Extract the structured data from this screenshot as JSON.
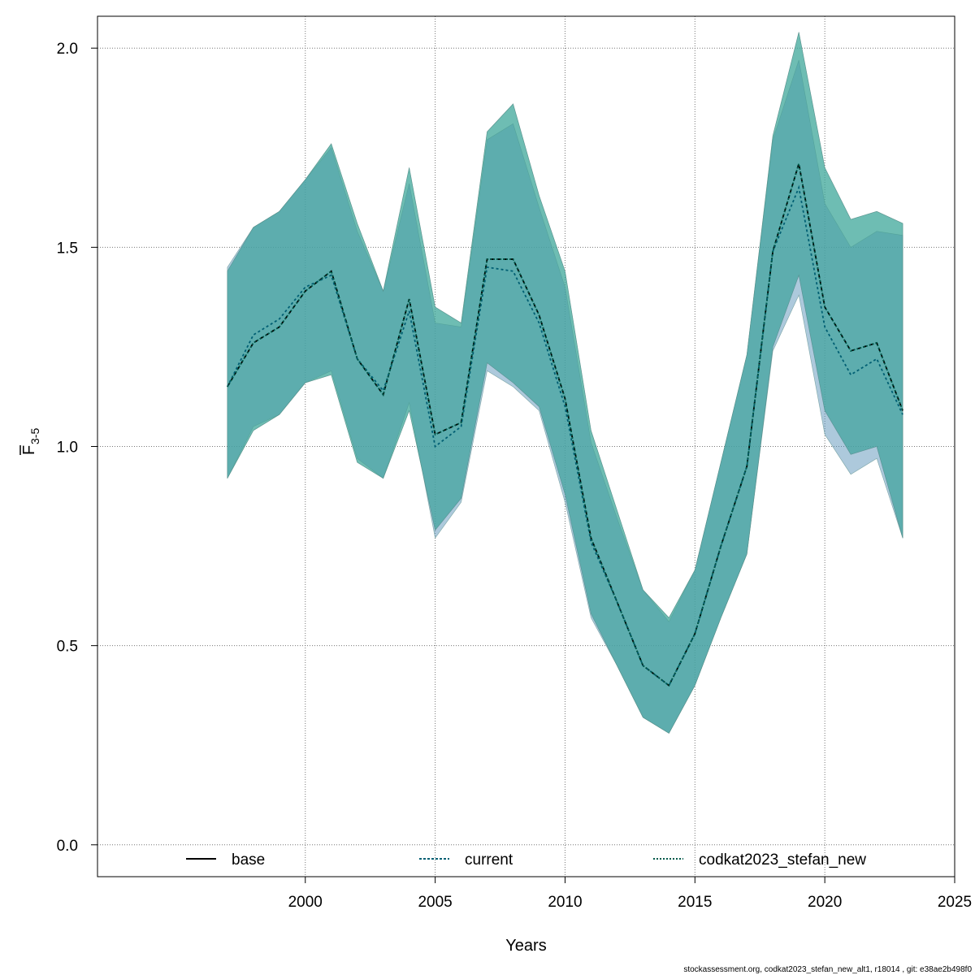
{
  "chart_data": {
    "type": "line",
    "xlabel": "Years",
    "ylabel_main": "F",
    "ylabel_sub": "3-5",
    "xlim": [
      1992,
      2025
    ],
    "ylim": [
      -0.08,
      2.08
    ],
    "grid": true,
    "legend_position": "bottom",
    "x_ticks": [
      2000,
      2005,
      2010,
      2015,
      2020,
      2025
    ],
    "y_ticks": [
      0.0,
      0.5,
      1.0,
      1.5,
      2.0
    ],
    "x_tick_labels": [
      "2000",
      "2005",
      "2010",
      "2015",
      "2020",
      "2025"
    ],
    "y_tick_labels": [
      "0.0",
      "0.5",
      "1.0",
      "1.5",
      "2.0"
    ],
    "years": [
      1997,
      1998,
      1999,
      2000,
      2001,
      2002,
      2003,
      2004,
      2005,
      2006,
      2007,
      2008,
      2009,
      2010,
      2011,
      2012,
      2013,
      2014,
      2015,
      2016,
      2017,
      2018,
      2019,
      2020,
      2021,
      2022,
      2023
    ],
    "series": [
      {
        "name": "base",
        "color": "#000000",
        "dash": "5,3",
        "values": [
          1.15,
          1.26,
          1.3,
          1.39,
          1.44,
          1.22,
          1.13,
          1.37,
          1.03,
          1.06,
          1.47,
          1.47,
          1.33,
          1.12,
          0.77,
          0.61,
          0.45,
          0.4,
          0.53,
          0.75,
          0.95,
          1.49,
          1.71,
          1.35,
          1.24,
          1.26,
          1.09
        ],
        "upper": [
          1.44,
          1.55,
          1.59,
          1.67,
          1.76,
          1.56,
          1.39,
          1.7,
          1.35,
          1.31,
          1.79,
          1.86,
          1.63,
          1.44,
          1.04,
          0.84,
          0.64,
          0.57,
          0.69,
          0.96,
          1.23,
          1.78,
          2.04,
          1.7,
          1.57,
          1.59,
          1.56
        ],
        "lower": [
          0.92,
          1.04,
          1.08,
          1.16,
          1.18,
          0.96,
          0.92,
          1.09,
          0.79,
          0.87,
          1.21,
          1.16,
          1.1,
          0.88,
          0.58,
          0.45,
          0.32,
          0.28,
          0.4,
          0.57,
          0.73,
          1.25,
          1.43,
          1.09,
          0.98,
          1.0,
          0.77
        ],
        "band_color": "#3da89a",
        "band_opacity": 0.5
      },
      {
        "name": "current",
        "color": "#005f73",
        "dash": "3,3",
        "values": [
          1.15,
          1.28,
          1.32,
          1.4,
          1.43,
          1.22,
          1.14,
          1.34,
          1.0,
          1.05,
          1.45,
          1.44,
          1.31,
          1.1,
          0.76,
          0.61,
          0.45,
          0.4,
          0.53,
          0.75,
          0.95,
          1.49,
          1.65,
          1.3,
          1.18,
          1.22,
          1.08
        ],
        "upper": [
          1.45,
          1.55,
          1.59,
          1.67,
          1.75,
          1.54,
          1.39,
          1.66,
          1.31,
          1.3,
          1.77,
          1.81,
          1.6,
          1.4,
          1.01,
          0.82,
          0.64,
          0.56,
          0.69,
          0.96,
          1.23,
          1.77,
          1.97,
          1.61,
          1.5,
          1.54,
          1.53
        ],
        "lower": [
          0.92,
          1.05,
          1.08,
          1.16,
          1.19,
          0.97,
          0.92,
          1.11,
          0.77,
          0.86,
          1.19,
          1.15,
          1.09,
          0.86,
          0.57,
          0.45,
          0.32,
          0.28,
          0.4,
          0.57,
          0.73,
          1.24,
          1.38,
          1.03,
          0.93,
          0.97,
          0.77
        ],
        "band_color": "#5b93ba",
        "band_opacity": 0.5
      },
      {
        "name": "codkat2023_stefan_new",
        "color": "#005a4a",
        "dash": "2,2",
        "values": [
          1.15,
          1.26,
          1.3,
          1.39,
          1.44,
          1.22,
          1.13,
          1.37,
          1.03,
          1.06,
          1.47,
          1.47,
          1.33,
          1.12,
          0.77,
          0.61,
          0.45,
          0.4,
          0.53,
          0.75,
          0.95,
          1.49,
          1.71,
          1.35,
          1.24,
          1.26,
          1.09
        ],
        "upper": [
          1.44,
          1.55,
          1.59,
          1.67,
          1.76,
          1.56,
          1.39,
          1.7,
          1.35,
          1.31,
          1.79,
          1.86,
          1.63,
          1.44,
          1.04,
          0.84,
          0.64,
          0.57,
          0.69,
          0.96,
          1.23,
          1.78,
          2.04,
          1.7,
          1.57,
          1.59,
          1.56
        ],
        "lower": [
          0.92,
          1.04,
          1.08,
          1.16,
          1.18,
          0.96,
          0.92,
          1.09,
          0.79,
          0.87,
          1.21,
          1.16,
          1.1,
          0.88,
          0.58,
          0.45,
          0.32,
          0.28,
          0.4,
          0.57,
          0.73,
          1.25,
          1.43,
          1.09,
          0.98,
          1.0,
          0.77
        ],
        "band_color": "#3da89a",
        "band_opacity": 0.5
      }
    ],
    "legend": [
      {
        "label": "base",
        "color": "#000000",
        "dash": ""
      },
      {
        "label": "current",
        "color": "#005f73",
        "dash": "3,2"
      },
      {
        "label": "codkat2023_stefan_new",
        "color": "#005a4a",
        "dash": "2,2"
      }
    ]
  },
  "footer": "stockassessment.org, codkat2023_stefan_new_alt1, r18014 , git: e38ae2b498f0"
}
